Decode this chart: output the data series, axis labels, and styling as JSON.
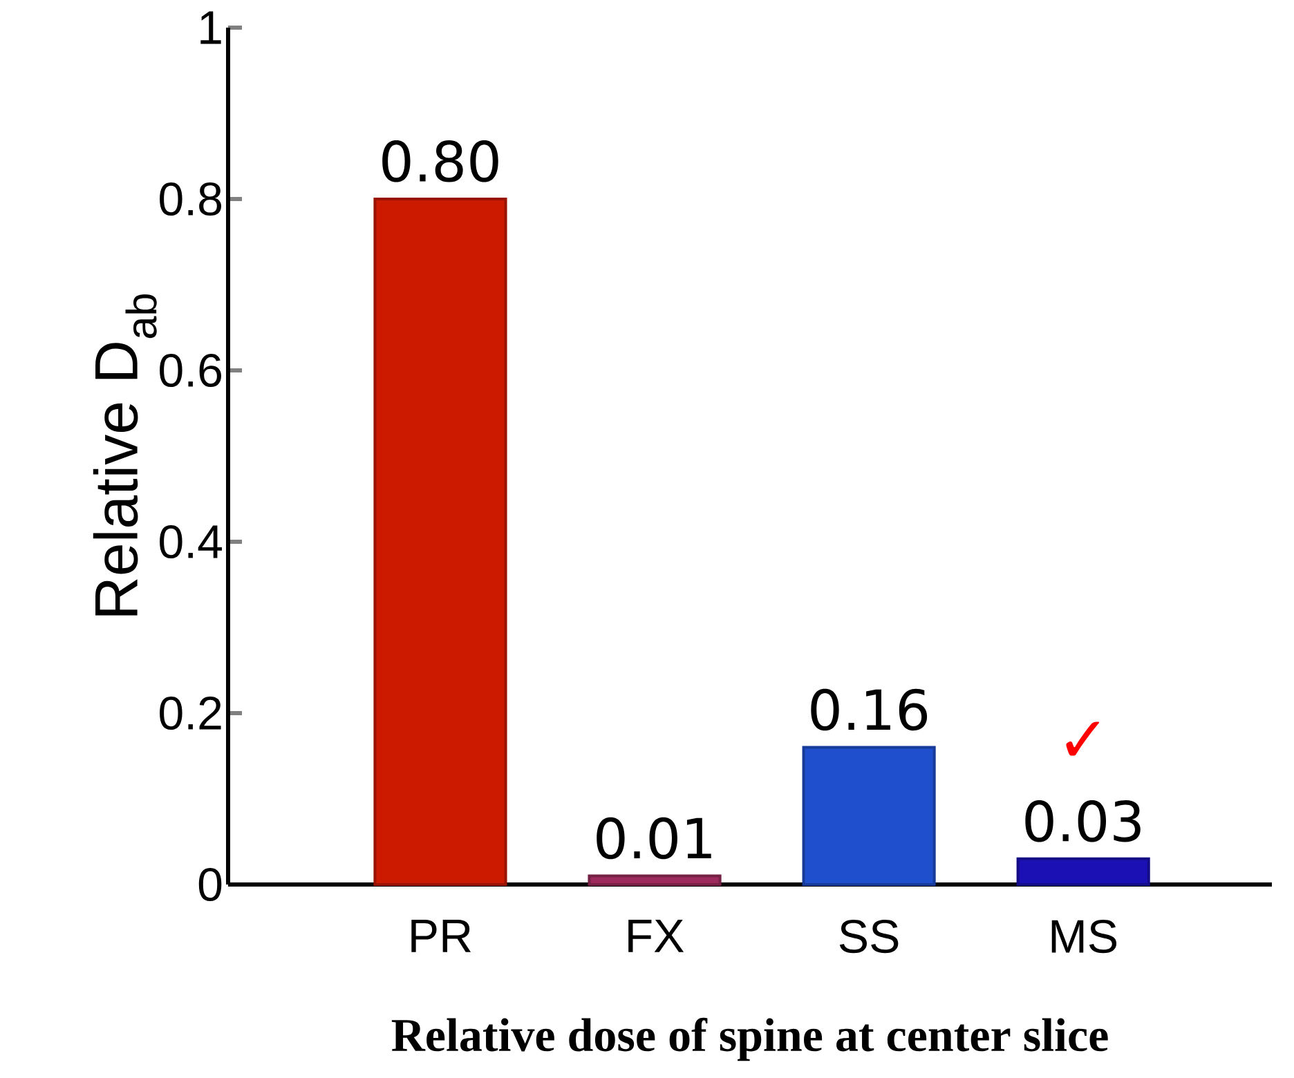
{
  "chart_data": {
    "type": "bar",
    "xlabel": "Relative dose of spine at center slice",
    "ylabel": "Relative D$_{ab}$",
    "categories": [
      "PR",
      "FX",
      "SS",
      "MS"
    ],
    "values": [
      0.8,
      0.01,
      0.16,
      0.03
    ],
    "value_labels": [
      "0.80",
      "0.01",
      "0.16",
      "0.03"
    ],
    "colors": [
      "#cc1a00",
      "#9c2a5c",
      "#1f4fcc",
      "#1a10b4"
    ],
    "ylim": [
      0,
      1
    ],
    "yticks": [
      0,
      0.2,
      0.4,
      0.6,
      0.8,
      1
    ],
    "annotations": [
      "✓"
    ]
  }
}
